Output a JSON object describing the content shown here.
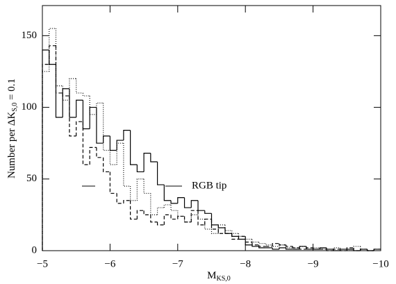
{
  "chart_data": {
    "type": "histogram",
    "xlabel": [
      "M",
      "KS,0"
    ],
    "ylabel": [
      "Number per ΔK",
      "S,0",
      " = 0.1"
    ],
    "annotation": "RGB tip",
    "bins": [
      -5,
      -5.1,
      -5.2,
      -5.3,
      -5.4,
      -5.5,
      -5.6,
      -5.7,
      -5.8,
      -5.9,
      -6,
      -6.1,
      -6.2,
      -6.3,
      -6.4,
      -6.5,
      -6.6,
      -6.7,
      -6.8,
      -6.9,
      -7,
      -7.1,
      -7.2,
      -7.3,
      -7.4,
      -7.5,
      -7.6,
      -7.7,
      -7.8,
      -7.9,
      -8,
      -8.1,
      -8.2,
      -8.3,
      -8.4,
      -8.5,
      -8.6,
      -8.7,
      -8.8,
      -8.9,
      -9,
      -9.1,
      -9.2,
      -9.3,
      -9.4,
      -9.5,
      -9.6,
      -9.7,
      -9.8,
      -9.9,
      -10
    ],
    "series": [
      {
        "dash": "solid",
        "color": "#000000",
        "values": [
          140,
          130,
          93,
          113,
          93,
          105,
          85,
          100,
          75,
          80,
          70,
          77,
          84,
          60,
          55,
          68,
          62,
          46,
          35,
          33,
          37,
          30,
          35,
          28,
          26,
          18,
          16,
          12,
          10,
          8,
          4,
          3,
          2,
          2,
          1,
          2,
          1,
          1,
          3,
          1,
          1,
          2,
          1,
          0,
          1,
          1,
          0,
          1,
          0,
          1
        ]
      },
      {
        "dash": "dotted",
        "color": "#000000",
        "values": [
          125,
          155,
          115,
          105,
          120,
          110,
          108,
          95,
          103,
          70,
          60,
          75,
          45,
          35,
          50,
          40,
          25,
          30,
          32,
          28,
          24,
          20,
          25,
          22,
          15,
          12,
          18,
          14,
          12,
          10,
          8,
          6,
          5,
          4,
          3,
          4,
          2,
          2,
          3,
          1,
          2,
          1,
          1,
          2,
          1,
          0,
          3,
          1,
          0,
          1
        ]
      },
      {
        "dash": "dashed",
        "color": "#000000",
        "values": [
          130,
          143,
          110,
          108,
          80,
          90,
          60,
          72,
          65,
          55,
          40,
          33,
          35,
          22,
          28,
          25,
          20,
          18,
          25,
          22,
          24,
          20,
          28,
          18,
          22,
          15,
          12,
          12,
          8,
          10,
          6,
          4,
          3,
          3,
          5,
          4,
          3,
          2,
          1,
          2,
          1,
          1,
          0,
          1,
          0,
          2,
          0,
          1,
          0,
          1
        ]
      }
    ],
    "xlim": [
      -5,
      -10
    ],
    "xticks": [
      {
        "value": -5,
        "label": "−5"
      },
      {
        "value": -6,
        "label": "−6"
      },
      {
        "value": -7,
        "label": "−7"
      },
      {
        "value": -8,
        "label": "−8"
      },
      {
        "value": -9,
        "label": "−9"
      },
      {
        "value": -10,
        "label": "−10"
      }
    ],
    "ylim": [
      0,
      171
    ],
    "yticks": [
      0,
      50,
      100,
      150
    ]
  }
}
